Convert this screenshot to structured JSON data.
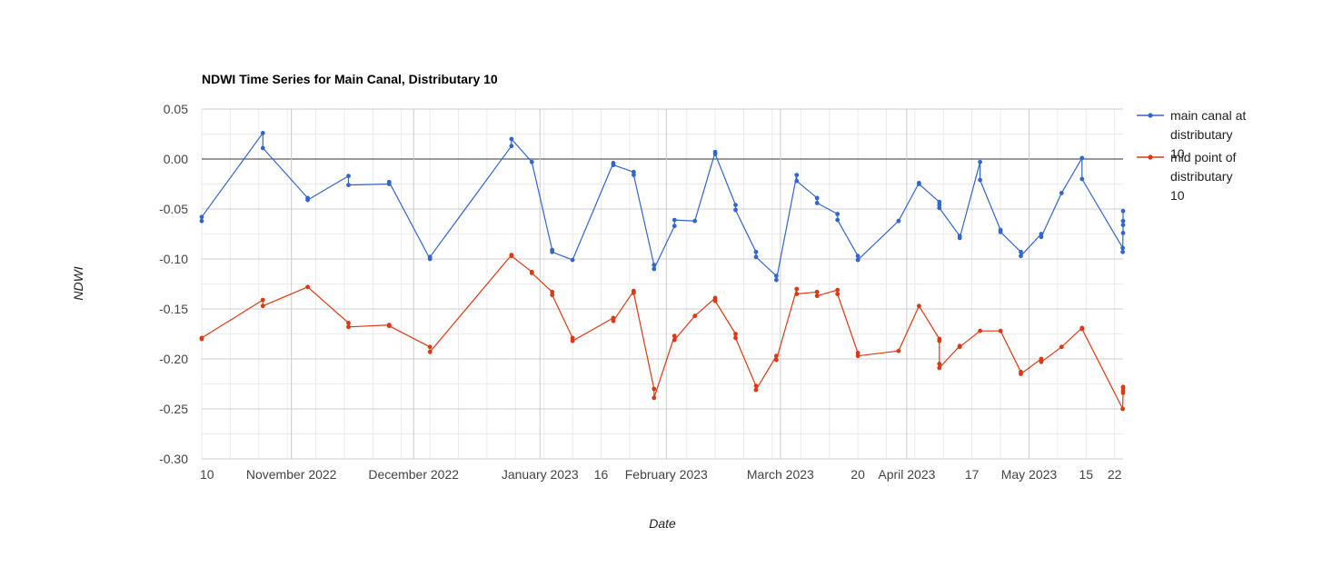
{
  "chart_data": {
    "type": "line",
    "title": "NDWI Time Series for Main Canal, Distributary 10",
    "xlabel": "Date",
    "ylabel": "NDWI",
    "ylim": [
      -0.3,
      0.05
    ],
    "yticks": [
      "0.05",
      "0.00",
      "-0.05",
      "-0.10",
      "-0.15",
      "-0.20",
      "-0.25",
      "-0.30"
    ],
    "xlim": [
      "2022-10-10",
      "2023-05-24"
    ],
    "xticks": [
      {
        "date": "2022-10-10",
        "label": "10"
      },
      {
        "date": "2022-11-01",
        "label": "November 2022"
      },
      {
        "date": "2022-12-01",
        "label": "December 2022"
      },
      {
        "date": "2023-01-01",
        "label": "January 2023"
      },
      {
        "date": "2023-01-16",
        "label": "16"
      },
      {
        "date": "2023-02-01",
        "label": "February 2023"
      },
      {
        "date": "2023-03-01",
        "label": "March 2023"
      },
      {
        "date": "2023-03-20",
        "label": "20"
      },
      {
        "date": "2023-04-01",
        "label": "April 2023"
      },
      {
        "date": "2023-04-17",
        "label": "17"
      },
      {
        "date": "2023-05-01",
        "label": "May 2023"
      },
      {
        "date": "2023-05-15",
        "label": "15"
      },
      {
        "date": "2023-05-22",
        "label": "22"
      }
    ],
    "legend_position": "right",
    "grid": true,
    "series": [
      {
        "name": "main canal at distributary 10",
        "color": "#3366cc",
        "points": [
          [
            "2022-10-10",
            -0.062
          ],
          [
            "2022-10-10",
            -0.058
          ],
          [
            "2022-10-25",
            0.026
          ],
          [
            "2022-10-25",
            0.011
          ],
          [
            "2022-11-05",
            -0.039
          ],
          [
            "2022-11-05",
            -0.041
          ],
          [
            "2022-11-15",
            -0.017
          ],
          [
            "2022-11-15",
            -0.026
          ],
          [
            "2022-11-25",
            -0.025
          ],
          [
            "2022-11-25",
            -0.023
          ],
          [
            "2022-12-05",
            -0.1
          ],
          [
            "2022-12-05",
            -0.098
          ],
          [
            "2022-12-25",
            0.013
          ],
          [
            "2022-12-25",
            0.02
          ],
          [
            "2022-12-30",
            -0.003
          ],
          [
            "2023-01-04",
            -0.091
          ],
          [
            "2023-01-04",
            -0.093
          ],
          [
            "2023-01-09",
            -0.101
          ],
          [
            "2023-01-19",
            -0.004
          ],
          [
            "2023-01-19",
            -0.006
          ],
          [
            "2023-01-24",
            -0.013
          ],
          [
            "2023-01-24",
            -0.016
          ],
          [
            "2023-01-29",
            -0.106
          ],
          [
            "2023-01-29",
            -0.11
          ],
          [
            "2023-02-03",
            -0.067
          ],
          [
            "2023-02-03",
            -0.061
          ],
          [
            "2023-02-08",
            -0.062
          ],
          [
            "2023-02-13",
            0.007
          ],
          [
            "2023-02-13",
            0.005
          ],
          [
            "2023-02-18",
            -0.046
          ],
          [
            "2023-02-18",
            -0.051
          ],
          [
            "2023-02-23",
            -0.093
          ],
          [
            "2023-02-23",
            -0.098
          ],
          [
            "2023-02-28",
            -0.117
          ],
          [
            "2023-02-28",
            -0.121
          ],
          [
            "2023-03-05",
            -0.016
          ],
          [
            "2023-03-05",
            -0.022
          ],
          [
            "2023-03-10",
            -0.039
          ],
          [
            "2023-03-10",
            -0.044
          ],
          [
            "2023-03-15",
            -0.055
          ],
          [
            "2023-03-15",
            -0.061
          ],
          [
            "2023-03-20",
            -0.097
          ],
          [
            "2023-03-20",
            -0.101
          ],
          [
            "2023-03-30",
            -0.062
          ],
          [
            "2023-04-04",
            -0.024
          ],
          [
            "2023-04-04",
            -0.025
          ],
          [
            "2023-04-09",
            -0.043
          ],
          [
            "2023-04-09",
            -0.046
          ],
          [
            "2023-04-09",
            -0.049
          ],
          [
            "2023-04-14",
            -0.077
          ],
          [
            "2023-04-14",
            -0.079
          ],
          [
            "2023-04-19",
            -0.003
          ],
          [
            "2023-04-19",
            -0.021
          ],
          [
            "2023-04-24",
            -0.071
          ],
          [
            "2023-04-24",
            -0.073
          ],
          [
            "2023-04-29",
            -0.093
          ],
          [
            "2023-04-29",
            -0.097
          ],
          [
            "2023-05-04",
            -0.075
          ],
          [
            "2023-05-04",
            -0.078
          ],
          [
            "2023-05-09",
            -0.034
          ],
          [
            "2023-05-14",
            0.001
          ],
          [
            "2023-05-14",
            -0.02
          ],
          [
            "2023-05-24",
            -0.089
          ],
          [
            "2023-05-24",
            -0.093
          ],
          [
            "2023-05-29",
            -0.066
          ],
          [
            "2023-05-29",
            -0.074
          ],
          [
            "2023-06-03",
            -0.052
          ],
          [
            "2023-06-03",
            -0.062
          ]
        ]
      },
      {
        "name": "mid point of distributary 10",
        "color": "#dc3912",
        "points": [
          [
            "2022-10-10",
            -0.18
          ],
          [
            "2022-10-10",
            -0.179
          ],
          [
            "2022-10-25",
            -0.141
          ],
          [
            "2022-10-25",
            -0.147
          ],
          [
            "2022-11-05",
            -0.128
          ],
          [
            "2022-11-15",
            -0.164
          ],
          [
            "2022-11-15",
            -0.168
          ],
          [
            "2022-11-25",
            -0.166
          ],
          [
            "2022-11-25",
            -0.167
          ],
          [
            "2022-12-05",
            -0.188
          ],
          [
            "2022-12-05",
            -0.193
          ],
          [
            "2022-12-25",
            -0.096
          ],
          [
            "2022-12-25",
            -0.097
          ],
          [
            "2022-12-30",
            -0.113
          ],
          [
            "2022-12-30",
            -0.114
          ],
          [
            "2023-01-04",
            -0.133
          ],
          [
            "2023-01-04",
            -0.136
          ],
          [
            "2023-01-09",
            -0.179
          ],
          [
            "2023-01-09",
            -0.182
          ],
          [
            "2023-01-19",
            -0.159
          ],
          [
            "2023-01-19",
            -0.162
          ],
          [
            "2023-01-24",
            -0.132
          ],
          [
            "2023-01-24",
            -0.134
          ],
          [
            "2023-01-29",
            -0.23
          ],
          [
            "2023-01-29",
            -0.239
          ],
          [
            "2023-02-03",
            -0.177
          ],
          [
            "2023-02-03",
            -0.181
          ],
          [
            "2023-02-08",
            -0.157
          ],
          [
            "2023-02-13",
            -0.139
          ],
          [
            "2023-02-13",
            -0.142
          ],
          [
            "2023-02-18",
            -0.175
          ],
          [
            "2023-02-18",
            -0.179
          ],
          [
            "2023-02-23",
            -0.227
          ],
          [
            "2023-02-23",
            -0.231
          ],
          [
            "2023-02-28",
            -0.197
          ],
          [
            "2023-02-28",
            -0.201
          ],
          [
            "2023-03-05",
            -0.13
          ],
          [
            "2023-03-05",
            -0.135
          ],
          [
            "2023-03-10",
            -0.133
          ],
          [
            "2023-03-10",
            -0.137
          ],
          [
            "2023-03-15",
            -0.131
          ],
          [
            "2023-03-15",
            -0.135
          ],
          [
            "2023-03-20",
            -0.194
          ],
          [
            "2023-03-20",
            -0.197
          ],
          [
            "2023-03-30",
            -0.192
          ],
          [
            "2023-04-04",
            -0.147
          ],
          [
            "2023-04-09",
            -0.18
          ],
          [
            "2023-04-09",
            -0.182
          ],
          [
            "2023-04-09",
            -0.205
          ],
          [
            "2023-04-09",
            -0.209
          ],
          [
            "2023-04-14",
            -0.187
          ],
          [
            "2023-04-14",
            -0.188
          ],
          [
            "2023-04-19",
            -0.172
          ],
          [
            "2023-04-24",
            -0.172
          ],
          [
            "2023-04-29",
            -0.213
          ],
          [
            "2023-04-29",
            -0.215
          ],
          [
            "2023-05-04",
            -0.2
          ],
          [
            "2023-05-04",
            -0.203
          ],
          [
            "2023-05-09",
            -0.188
          ],
          [
            "2023-05-14",
            -0.169
          ],
          [
            "2023-05-14",
            -0.17
          ],
          [
            "2023-05-24",
            -0.25
          ],
          [
            "2023-05-29",
            -0.232
          ],
          [
            "2023-05-29",
            -0.234
          ],
          [
            "2023-06-03",
            -0.228
          ],
          [
            "2023-06-03",
            -0.229
          ]
        ]
      }
    ]
  }
}
